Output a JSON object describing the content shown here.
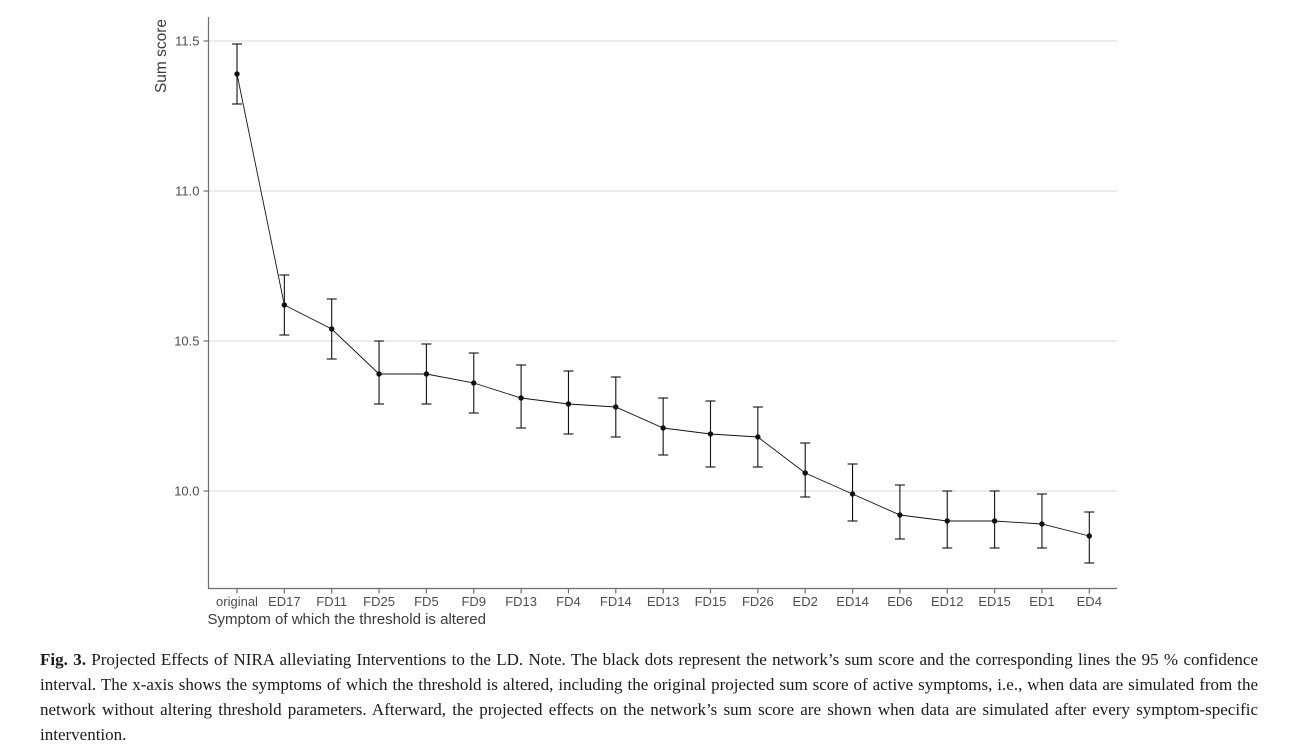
{
  "figure": {
    "label": "Fig. 3.",
    "caption": "Projected Effects of NIRA alleviating Interventions to the LD. Note. The black dots represent the network’s sum score and the corresponding lines the 95 % confidence interval. The x-axis shows the symptoms of which the threshold is altered, including the original projected sum score of active symptoms, i.e., when data are simulated from the network without altering threshold parameters. Afterward, the projected effects on the network’s sum score are shown when data are simulated after every symptom-specific intervention."
  },
  "chart_data": {
    "type": "line",
    "subtype": "points-with-error-bars",
    "title": "",
    "xlabel": "Symptom of which the threshold is altered",
    "ylabel": "Sum score",
    "categories": [
      "original",
      "ED17",
      "FD11",
      "FD25",
      "FD5",
      "FD9",
      "FD13",
      "FD4",
      "FD14",
      "ED13",
      "FD15",
      "FD26",
      "ED2",
      "ED14",
      "ED6",
      "ED12",
      "ED15",
      "ED1",
      "ED4"
    ],
    "series": [
      {
        "name": "Projected sum score",
        "values": [
          11.39,
          10.62,
          10.54,
          10.39,
          10.39,
          10.36,
          10.31,
          10.29,
          10.28,
          10.21,
          10.19,
          10.18,
          10.06,
          9.99,
          9.92,
          9.9,
          9.9,
          9.89,
          9.85
        ]
      }
    ],
    "error_low": [
      11.29,
      10.52,
      10.44,
      10.29,
      10.29,
      10.26,
      10.21,
      10.19,
      10.18,
      10.12,
      10.08,
      10.08,
      9.98,
      9.9,
      9.84,
      9.81,
      9.81,
      9.81,
      9.76
    ],
    "error_high": [
      11.49,
      10.72,
      10.64,
      10.5,
      10.49,
      10.46,
      10.42,
      10.4,
      10.38,
      10.31,
      10.3,
      10.28,
      10.16,
      10.09,
      10.02,
      10.0,
      10.0,
      9.99,
      9.93
    ],
    "error_bar_meaning": "95 % confidence interval",
    "yticks": [
      11.5,
      11.0,
      10.5,
      10.0
    ],
    "ylim": [
      9.67,
      11.58
    ],
    "grid": "horizontal",
    "legend": "none"
  },
  "colors": {
    "background": "#ffffff",
    "grid": "#d9d9d9",
    "axis": "#6e6e6e",
    "tick_label": "#4d4d4d",
    "axis_title": "#3a3a3a",
    "data": "#111111",
    "caption_text": "#1a1a1a"
  }
}
